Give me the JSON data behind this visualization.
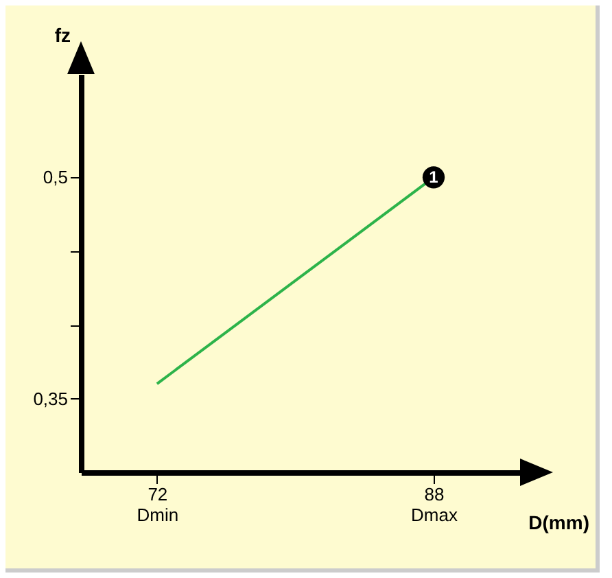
{
  "chart_data": {
    "type": "line",
    "xlabel": "D(mm)",
    "ylabel": "fz",
    "x": [
      72,
      88
    ],
    "series": [
      {
        "color": "#2db34a",
        "values": [
          0.36,
          0.5
        ]
      }
    ],
    "xlim": [
      67.6,
      93
    ],
    "ylim": [
      0.3,
      0.57
    ],
    "xticks": [
      {
        "value": 72,
        "label": "72\nDmin"
      },
      {
        "value": 88,
        "label": "88\nDmax"
      }
    ],
    "yticks": [
      {
        "value": 0.35,
        "label": "0,35"
      },
      {
        "value": 0.4,
        "label": null
      },
      {
        "value": 0.45,
        "label": null
      },
      {
        "value": 0.5,
        "label": "0,5"
      }
    ],
    "annotations": [
      {
        "text": "1",
        "x": 88,
        "y": 0.5
      }
    ],
    "grid": false
  }
}
